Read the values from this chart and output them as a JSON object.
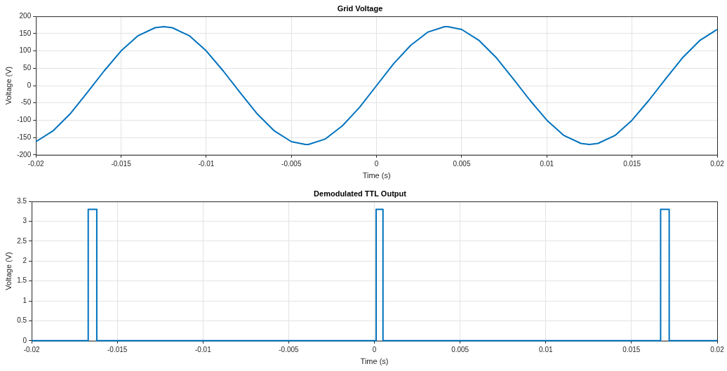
{
  "chart_data": [
    {
      "type": "line",
      "title": "Grid Voltage",
      "xlabel": "Time (s)",
      "ylabel": "Voltage (V)",
      "xlim": [
        -0.02,
        0.02
      ],
      "xticks": [
        -0.02,
        -0.015,
        -0.01,
        -0.005,
        0,
        0.005,
        0.01,
        0.015,
        0.02
      ],
      "ylim": [
        -200,
        200
      ],
      "yticks": [
        -200,
        -150,
        -100,
        -50,
        0,
        50,
        100,
        150,
        200
      ],
      "grid": true,
      "legend": false,
      "marker": "none",
      "line_style": "solid",
      "series": [
        {
          "color": "#0072bd",
          "x": [
            -0.02,
            -0.019,
            -0.018,
            -0.017,
            -0.016,
            -0.015,
            -0.014,
            -0.013,
            -0.0125,
            -0.012,
            -0.011,
            -0.01,
            -0.009,
            -0.008,
            -0.007,
            -0.006,
            -0.005,
            -0.00417,
            -0.004,
            -0.003,
            -0.002,
            -0.001,
            0,
            0.001,
            0.002,
            0.003,
            0.004,
            0.00417,
            0.005,
            0.006,
            0.007,
            0.008,
            0.009,
            0.01,
            0.011,
            0.012,
            0.0125,
            0.013,
            0.014,
            0.015,
            0.016,
            0.017,
            0.018,
            0.019,
            0.02
          ],
          "values": [
            -162,
            -131,
            -82,
            -21,
            42,
            100,
            144,
            167,
            170,
            167,
            144,
            100,
            42,
            -21,
            -82,
            -131,
            -162,
            -170,
            -170,
            -154,
            -116,
            -63,
            0,
            63,
            116,
            154,
            170,
            170,
            162,
            131,
            82,
            21,
            -42,
            -100,
            -144,
            -167,
            -170,
            -167,
            -144,
            -100,
            -42,
            21,
            82,
            131,
            162
          ]
        }
      ]
    },
    {
      "type": "step",
      "title": "Demodulated TTL Output",
      "xlabel": "Time (s)",
      "ylabel": "Voltage (V)",
      "xlim": [
        -0.02,
        0.02
      ],
      "xticks": [
        -0.02,
        -0.015,
        -0.01,
        -0.005,
        0,
        0.005,
        0.01,
        0.015,
        0.02
      ],
      "ylim": [
        0,
        3.5
      ],
      "yticks": [
        0,
        0.5,
        1,
        1.5,
        2,
        2.5,
        3,
        3.5
      ],
      "grid": true,
      "legend": false,
      "marker": "none",
      "line_style": "solid",
      "series": [
        {
          "color": "#0072bd",
          "x": [
            -0.02,
            -0.0167,
            -0.0162,
            0.0001,
            0.0005,
            0.0167,
            0.0172,
            0.02
          ],
          "values": [
            0,
            3.3,
            0,
            3.3,
            0,
            3.3,
            0,
            0
          ]
        }
      ]
    }
  ]
}
